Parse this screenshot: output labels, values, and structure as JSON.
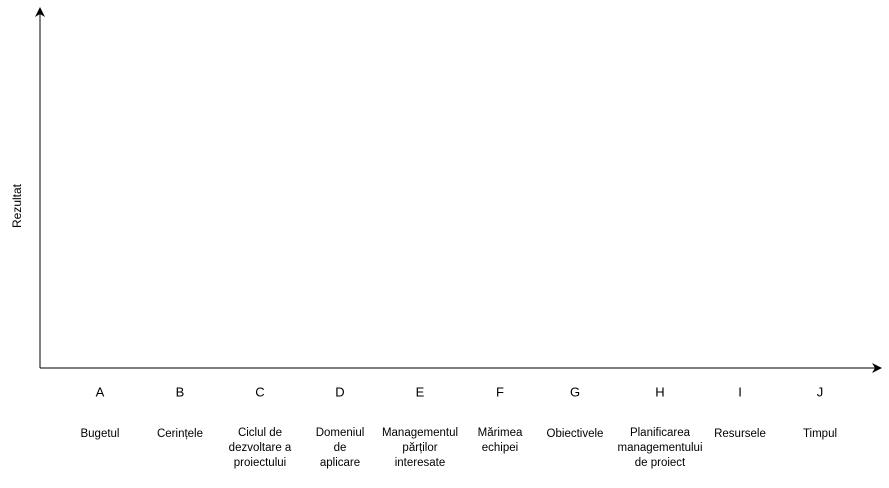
{
  "y_axis_label": "Rezultat",
  "items": [
    {
      "letter": "A",
      "description": [
        "Bugetul"
      ]
    },
    {
      "letter": "B",
      "description": [
        "Cerințele"
      ]
    },
    {
      "letter": "C",
      "description": [
        "Ciclul de",
        "dezvoltare a",
        "proiectului"
      ]
    },
    {
      "letter": "D",
      "description": [
        "Domeniul",
        "de",
        "aplicare"
      ]
    },
    {
      "letter": "E",
      "description": [
        "Managementul",
        "părților",
        "interesate"
      ]
    },
    {
      "letter": "F",
      "description": [
        "Mărimea",
        "echipei"
      ]
    },
    {
      "letter": "G",
      "description": [
        "Obiectivele"
      ]
    },
    {
      "letter": "H",
      "description": [
        "Planificarea",
        "managementului",
        "de proiect"
      ]
    },
    {
      "letter": "I",
      "description": [
        "Resursele"
      ]
    },
    {
      "letter": "J",
      "description": [
        "Timpul"
      ]
    }
  ]
}
